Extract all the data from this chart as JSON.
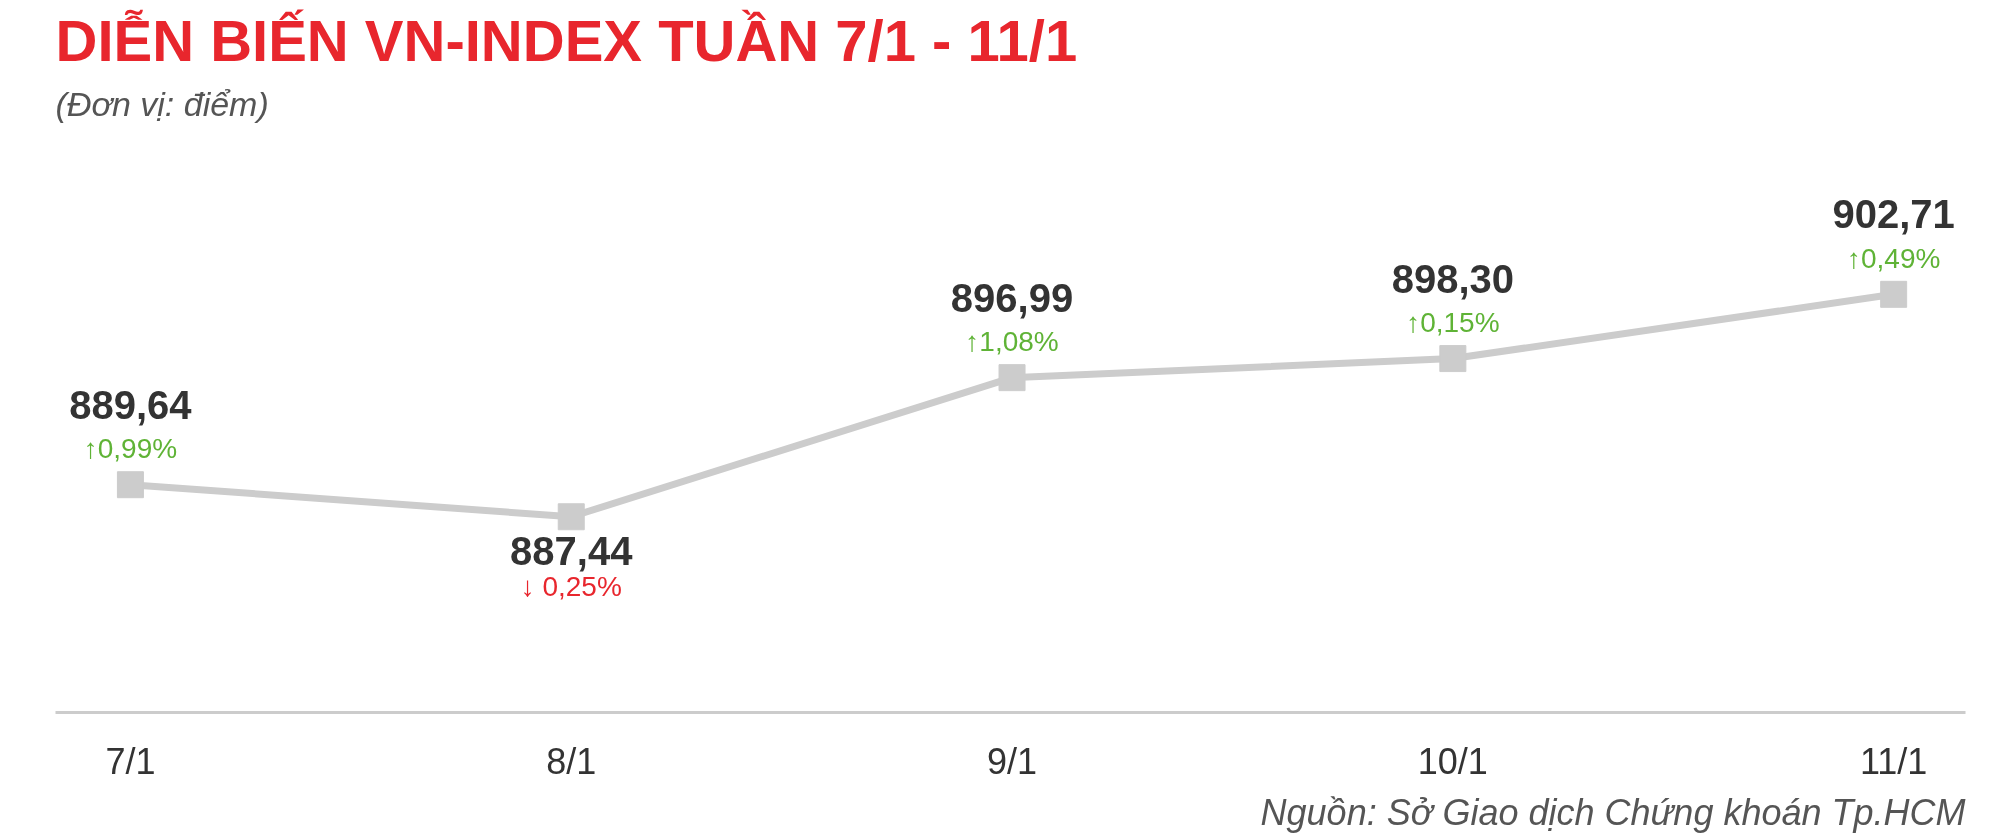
{
  "chart_data": {
    "type": "line",
    "title": "DIỄN BIẾN VN-INDEX TUẦN 7/1 - 11/1",
    "subtitle": "(Đơn vị: điểm)",
    "categories": [
      "7/1",
      "8/1",
      "9/1",
      "10/1",
      "11/1"
    ],
    "values": [
      889.64,
      887.44,
      896.99,
      898.3,
      902.71
    ],
    "value_labels": [
      "889,64",
      "887,44",
      "896,99",
      "898,30",
      "902,71"
    ],
    "color": "#cccccc",
    "marker": "square",
    "tick_labels": "x",
    "grid": false,
    "annotations": [
      {
        "text": "↑0,99%",
        "x": "7/1",
        "y": 889.64
      },
      {
        "text": "↓ 0,25%",
        "x": "8/1",
        "y": 887.44
      },
      {
        "text": "↑1,08%",
        "x": "9/1",
        "y": 896.99
      },
      {
        "text": "↑0,15%",
        "x": "10/1",
        "y": 898.3
      },
      {
        "text": "↑0,49%",
        "x": "11/1",
        "y": 902.71
      },
      "Nguồn: Sở Giao dịch Chứng khoán Tp.HCM"
    ]
  }
}
